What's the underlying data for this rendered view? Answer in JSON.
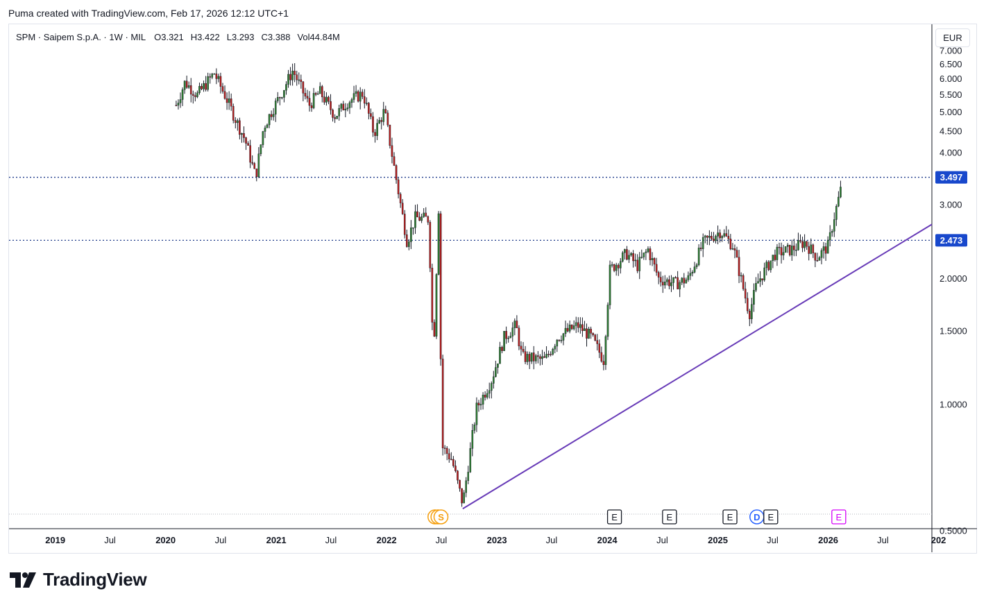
{
  "header": {
    "caption": "Puma created with TradingView.com, Feb 17, 2026 12:12 UTC+1"
  },
  "legend": {
    "symbol": "SPM · Saipem S.p.A. · 1W · MIL",
    "open_label": "O",
    "open": "3.321",
    "high_label": "H",
    "high": "3.422",
    "low_label": "L",
    "low": "3.293",
    "close_label": "C",
    "close": "3.388",
    "vol_label": "Vol",
    "vol": "44.84M"
  },
  "currency_button": "EUR",
  "colors": {
    "up": "#2e7d32",
    "down": "#b71c1c",
    "wick": "#131722",
    "trendline": "#673ab7",
    "hline": "#1e3a8a",
    "price_label_bg": "#1848cc",
    "event_orange": "#f59e0b",
    "event_blue": "#2962ff",
    "event_purple": "#d500f9"
  },
  "chart_data": {
    "type": "candlestick",
    "timeframe": "1W",
    "currency": "EUR",
    "y_scale": "log",
    "ylim": [
      0.53,
      7.1
    ],
    "xlim": [
      "2018-08-01",
      "2026-12-10"
    ],
    "y_ticks": [
      "0.5000",
      "1.0000",
      "1.5000",
      "2.0000",
      "2.500",
      "3.000",
      "3.500",
      "4.000",
      "4.500",
      "5.000",
      "5.500",
      "6.000",
      "6.500",
      "7.000"
    ],
    "x_ticks": [
      {
        "label": "2019",
        "date": "2019-01-01"
      },
      {
        "label": "Jul",
        "date": "2019-07-01"
      },
      {
        "label": "2020",
        "date": "2020-01-01"
      },
      {
        "label": "Jul",
        "date": "2020-07-01"
      },
      {
        "label": "2021",
        "date": "2021-01-01"
      },
      {
        "label": "Jul",
        "date": "2021-07-01"
      },
      {
        "label": "2022",
        "date": "2022-01-01"
      },
      {
        "label": "Jul",
        "date": "2022-07-01"
      },
      {
        "label": "2023",
        "date": "2023-01-01"
      },
      {
        "label": "Jul",
        "date": "2023-07-01"
      },
      {
        "label": "2024",
        "date": "2024-01-01"
      },
      {
        "label": "Jul",
        "date": "2024-07-01"
      },
      {
        "label": "2025",
        "date": "2025-01-01"
      },
      {
        "label": "Jul",
        "date": "2025-07-01"
      },
      {
        "label": "2026",
        "date": "2026-01-01"
      },
      {
        "label": "Jul",
        "date": "2026-07-01"
      },
      {
        "label": "202",
        "date": "2027-01-01"
      }
    ],
    "anchors": [
      {
        "date": "2020-02-05",
        "close": 5.2
      },
      {
        "date": "2020-03-05",
        "close": 5.9
      },
      {
        "date": "2020-04-15",
        "close": 5.5
      },
      {
        "date": "2020-06-10",
        "close": 6.2
      },
      {
        "date": "2020-07-20",
        "close": 5.4
      },
      {
        "date": "2020-08-20",
        "close": 4.8
      },
      {
        "date": "2020-09-20",
        "close": 4.3
      },
      {
        "date": "2020-10-25",
        "close": 3.5
      },
      {
        "date": "2020-11-20",
        "close": 4.6
      },
      {
        "date": "2020-12-15",
        "close": 5.0
      },
      {
        "date": "2021-01-15",
        "close": 5.5
      },
      {
        "date": "2021-02-25",
        "close": 6.3
      },
      {
        "date": "2021-03-20",
        "close": 5.8
      },
      {
        "date": "2021-04-20",
        "close": 5.2
      },
      {
        "date": "2021-05-25",
        "close": 5.6
      },
      {
        "date": "2021-07-15",
        "close": 4.9
      },
      {
        "date": "2021-08-25",
        "close": 5.3
      },
      {
        "date": "2021-10-15",
        "close": 5.55
      },
      {
        "date": "2021-11-20",
        "close": 4.45
      },
      {
        "date": "2021-12-25",
        "close": 5.05
      },
      {
        "date": "2022-02-15",
        "close": 3.05
      },
      {
        "date": "2022-03-10",
        "close": 2.45
      },
      {
        "date": "2022-04-05",
        "close": 2.8
      },
      {
        "date": "2022-05-20",
        "close": 2.78
      },
      {
        "date": "2022-06-05",
        "close": 1.3
      },
      {
        "date": "2022-06-25",
        "close": 3.4
      },
      {
        "date": "2022-07-01",
        "close": 0.8
      },
      {
        "date": "2022-08-05",
        "close": 0.74
      },
      {
        "date": "2022-09-10",
        "close": 0.58
      },
      {
        "date": "2022-10-25",
        "close": 0.98
      },
      {
        "date": "2022-12-15",
        "close": 1.15
      },
      {
        "date": "2023-01-25",
        "close": 1.45
      },
      {
        "date": "2023-03-05",
        "close": 1.55
      },
      {
        "date": "2023-03-25",
        "close": 1.3
      },
      {
        "date": "2023-06-10",
        "close": 1.28
      },
      {
        "date": "2023-07-20",
        "close": 1.45
      },
      {
        "date": "2023-09-25",
        "close": 1.55
      },
      {
        "date": "2023-11-10",
        "close": 1.45
      },
      {
        "date": "2023-12-20",
        "close": 1.28
      },
      {
        "date": "2024-01-10",
        "close": 2.1
      },
      {
        "date": "2024-03-05",
        "close": 2.3
      },
      {
        "date": "2024-04-10",
        "close": 2.15
      },
      {
        "date": "2024-05-15",
        "close": 2.35
      },
      {
        "date": "2024-06-20",
        "close": 2.0
      },
      {
        "date": "2024-08-15",
        "close": 1.95
      },
      {
        "date": "2024-09-25",
        "close": 2.0
      },
      {
        "date": "2024-11-15",
        "close": 2.45
      },
      {
        "date": "2025-01-10",
        "close": 2.6
      },
      {
        "date": "2025-02-20",
        "close": 2.4
      },
      {
        "date": "2025-03-15",
        "close": 2.05
      },
      {
        "date": "2025-04-15",
        "close": 1.65
      },
      {
        "date": "2025-05-10",
        "close": 1.95
      },
      {
        "date": "2025-07-10",
        "close": 2.3
      },
      {
        "date": "2025-09-01",
        "close": 2.35
      },
      {
        "date": "2025-10-15",
        "close": 2.45
      },
      {
        "date": "2025-11-25",
        "close": 2.25
      },
      {
        "date": "2026-01-01",
        "close": 2.4
      },
      {
        "date": "2026-01-20",
        "close": 2.8
      },
      {
        "date": "2026-02-17",
        "close": 3.39
      }
    ],
    "horizontal_lines": [
      {
        "price": 3.497,
        "label": "3.497"
      },
      {
        "price": 2.473,
        "label": "2.473"
      }
    ],
    "trendline": {
      "from": {
        "date": "2022-09-10",
        "price": 0.565
      },
      "to": {
        "date": "2026-12-10",
        "price": 2.7
      }
    },
    "event_markers": [
      {
        "date": "2022-06-10",
        "label": "",
        "color": "orange"
      },
      {
        "date": "2022-06-20",
        "label": "",
        "color": "orange"
      },
      {
        "date": "2022-06-30",
        "label": "S",
        "color": "orange"
      },
      {
        "date": "2024-01-25",
        "label": "E",
        "color": "gray"
      },
      {
        "date": "2024-07-25",
        "label": "E",
        "color": "gray"
      },
      {
        "date": "2025-02-10",
        "label": "E",
        "color": "gray"
      },
      {
        "date": "2025-05-10",
        "label": "D",
        "color": "blue"
      },
      {
        "date": "2025-06-25",
        "label": "E",
        "color": "gray"
      },
      {
        "date": "2026-02-05",
        "label": "E",
        "color": "purple"
      }
    ]
  },
  "branding": {
    "name": "TradingView"
  }
}
